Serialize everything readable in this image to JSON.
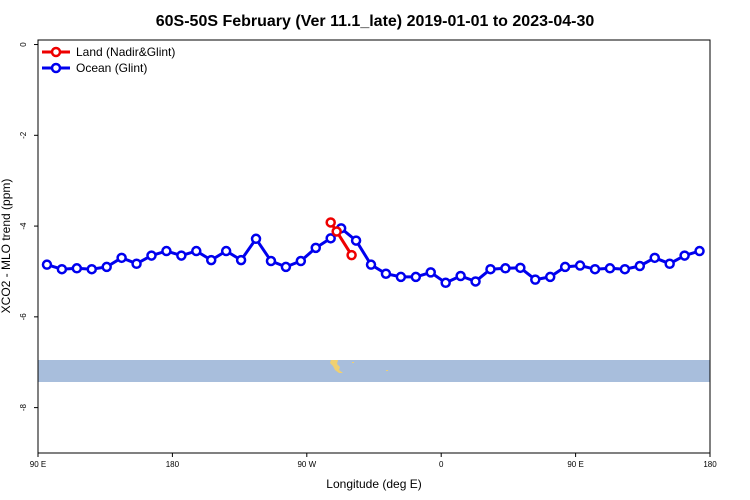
{
  "chart_data": {
    "type": "line",
    "title": "60S-50S February (Ver 11.1_late)   2019-01-01 to 2023-04-30",
    "xlabel": "Longitude (deg E)",
    "ylabel": "XCO2 - MLO trend (ppm)",
    "x_ticks": [
      {
        "value": 90,
        "label": "90 E"
      },
      {
        "value": 180,
        "label": "180"
      },
      {
        "value": 270,
        "label": "90 W"
      },
      {
        "value": 360,
        "label": "0"
      },
      {
        "value": 450,
        "label": "90 E"
      },
      {
        "value": 540,
        "label": "180"
      }
    ],
    "y_ticks": [
      {
        "value": 0,
        "label": "0"
      },
      {
        "value": -2,
        "label": "-2"
      },
      {
        "value": -4,
        "label": "-4"
      },
      {
        "value": -6,
        "label": "-6"
      },
      {
        "value": -8,
        "label": "-8"
      }
    ],
    "xlim": [
      90,
      540
    ],
    "ylim": [
      -9,
      0.1
    ],
    "legend_position": "top-left",
    "colors": {
      "land": "#ee0000",
      "ocean": "#0000ee",
      "map_ocean": "#a8bedc",
      "map_land": "#f0d070"
    },
    "series": [
      {
        "name": "Land (Nadir&Glint)",
        "color": "#ee0000",
        "x": [
          286,
          290,
          300
        ],
        "y": [
          -3.92,
          -4.12,
          -4.64
        ]
      },
      {
        "name": "Ocean (Glint)",
        "color": "#0000ee",
        "x": [
          96,
          106,
          116,
          126,
          136,
          146,
          156,
          166,
          176,
          186,
          196,
          206,
          216,
          226,
          236,
          246,
          256,
          266,
          276,
          286,
          293,
          303,
          313,
          323,
          333,
          343,
          353,
          363,
          373,
          383,
          393,
          403,
          413,
          423,
          433,
          443,
          453,
          463,
          473,
          483,
          493,
          503,
          513,
          523,
          533
        ],
        "y": [
          -4.85,
          -4.95,
          -4.93,
          -4.95,
          -4.9,
          -4.7,
          -4.83,
          -4.65,
          -4.55,
          -4.65,
          -4.55,
          -4.75,
          -4.55,
          -4.75,
          -4.28,
          -4.77,
          -4.9,
          -4.77,
          -4.48,
          -4.27,
          -4.05,
          -4.32,
          -4.85,
          -5.05,
          -5.12,
          -5.12,
          -5.02,
          -5.25,
          -5.1,
          -5.22,
          -4.95,
          -4.93,
          -4.92,
          -5.18,
          -5.12,
          -4.9,
          -4.87,
          -4.95,
          -4.93,
          -4.95,
          -4.88,
          -4.7,
          -4.83,
          -4.65,
          -4.55
        ]
      }
    ]
  }
}
